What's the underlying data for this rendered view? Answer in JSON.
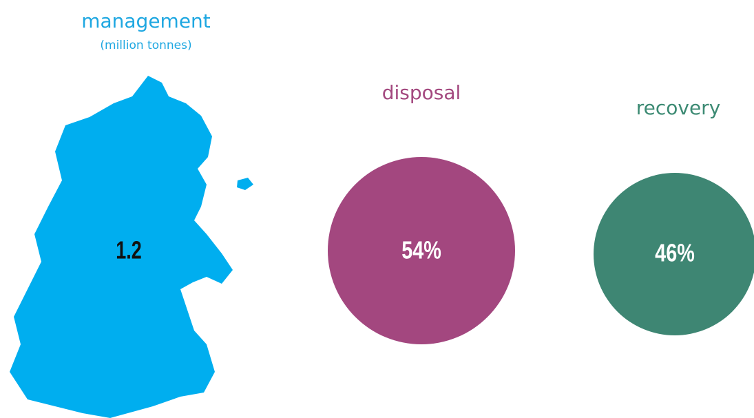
{
  "header": {
    "title": "management",
    "subtitle": "(million tonnes)"
  },
  "map": {
    "value": "1.2"
  },
  "circles": [
    {
      "label": "disposal",
      "value": "54%"
    },
    {
      "label": "recovery",
      "value": "46%"
    }
  ]
}
